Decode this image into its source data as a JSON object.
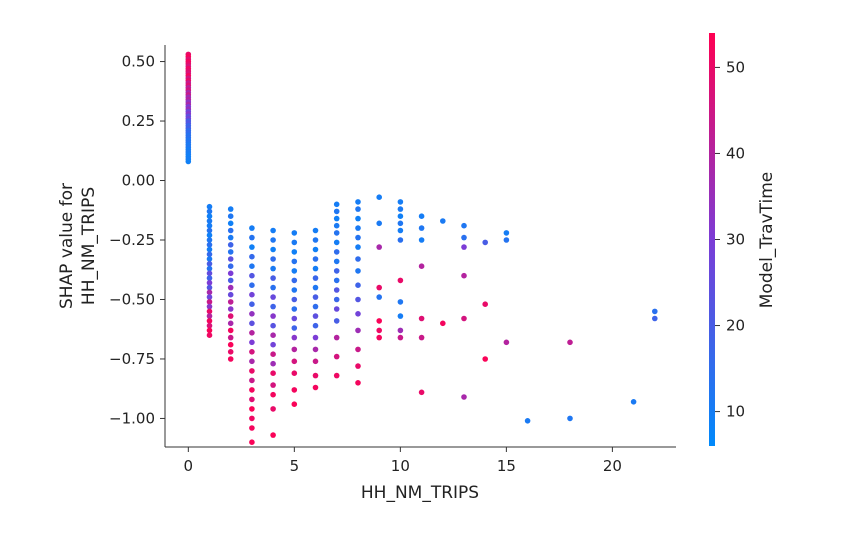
{
  "chart_data": {
    "type": "scatter",
    "xlabel": "HH_NM_TRIPS",
    "ylabel_lines": [
      "SHAP value for",
      "HH_NM_TRIPS"
    ],
    "xlim": [
      -1.1,
      23.0
    ],
    "ylim": [
      -1.12,
      0.62
    ],
    "xticks": [
      0,
      5,
      10,
      15,
      20
    ],
    "xtick_labels": [
      "0",
      "5",
      "10",
      "15",
      "20"
    ],
    "yticks": [
      0.5,
      0.25,
      0.0,
      -0.25,
      -0.5,
      -0.75,
      -1.0
    ],
    "ytick_labels": [
      "0.50",
      "0.25",
      "0.00",
      "−0.25",
      "−0.50",
      "−0.75",
      "−1.00"
    ],
    "grid": false,
    "colorbar": {
      "label": "Model_TravTime",
      "range": [
        6,
        54
      ],
      "ticks": [
        10,
        20,
        30,
        40,
        50
      ],
      "tick_labels": [
        "10",
        "20",
        "30",
        "40",
        "50"
      ],
      "color_low": "#008afb",
      "color_mid": "#7c3cd6",
      "color_high": "#ff0052"
    },
    "points": [
      [
        0,
        0.53,
        50
      ],
      [
        0,
        0.52,
        53
      ],
      [
        0,
        0.51,
        48
      ],
      [
        0,
        0.5,
        52
      ],
      [
        0,
        0.49,
        50
      ],
      [
        0,
        0.48,
        46
      ],
      [
        0,
        0.47,
        51
      ],
      [
        0,
        0.46,
        49
      ],
      [
        0,
        0.45,
        47
      ],
      [
        0,
        0.44,
        52
      ],
      [
        0,
        0.43,
        45
      ],
      [
        0,
        0.42,
        50
      ],
      [
        0,
        0.41,
        43
      ],
      [
        0,
        0.4,
        48
      ],
      [
        0,
        0.39,
        41
      ],
      [
        0,
        0.38,
        46
      ],
      [
        0,
        0.37,
        38
      ],
      [
        0,
        0.36,
        44
      ],
      [
        0,
        0.35,
        36
      ],
      [
        0,
        0.34,
        40
      ],
      [
        0,
        0.33,
        33
      ],
      [
        0,
        0.32,
        38
      ],
      [
        0,
        0.31,
        30
      ],
      [
        0,
        0.3,
        35
      ],
      [
        0,
        0.29,
        27
      ],
      [
        0,
        0.28,
        32
      ],
      [
        0,
        0.27,
        24
      ],
      [
        0,
        0.26,
        28
      ],
      [
        0,
        0.25,
        20
      ],
      [
        0,
        0.24,
        22
      ],
      [
        0,
        0.23,
        17
      ],
      [
        0,
        0.22,
        19
      ],
      [
        0,
        0.21,
        15
      ],
      [
        0,
        0.2,
        16
      ],
      [
        0,
        0.19,
        13
      ],
      [
        0,
        0.18,
        14
      ],
      [
        0,
        0.17,
        12
      ],
      [
        0,
        0.16,
        13
      ],
      [
        0,
        0.15,
        11
      ],
      [
        0,
        0.14,
        12
      ],
      [
        0,
        0.13,
        10
      ],
      [
        0,
        0.12,
        11
      ],
      [
        0,
        0.11,
        10
      ],
      [
        0,
        0.1,
        9
      ],
      [
        0,
        0.09,
        10
      ],
      [
        0,
        0.08,
        9
      ],
      [
        1,
        -0.11,
        10
      ],
      [
        1,
        -0.13,
        12
      ],
      [
        1,
        -0.15,
        9
      ],
      [
        1,
        -0.17,
        11
      ],
      [
        1,
        -0.19,
        10
      ],
      [
        1,
        -0.21,
        13
      ],
      [
        1,
        -0.23,
        9
      ],
      [
        1,
        -0.25,
        12
      ],
      [
        1,
        -0.27,
        14
      ],
      [
        1,
        -0.29,
        10
      ],
      [
        1,
        -0.31,
        16
      ],
      [
        1,
        -0.33,
        11
      ],
      [
        1,
        -0.35,
        20
      ],
      [
        1,
        -0.37,
        13
      ],
      [
        1,
        -0.39,
        25
      ],
      [
        1,
        -0.41,
        18
      ],
      [
        1,
        -0.43,
        30
      ],
      [
        1,
        -0.45,
        22
      ],
      [
        1,
        -0.47,
        38
      ],
      [
        1,
        -0.49,
        27
      ],
      [
        1,
        -0.51,
        44
      ],
      [
        1,
        -0.53,
        33
      ],
      [
        1,
        -0.55,
        50
      ],
      [
        1,
        -0.57,
        40
      ],
      [
        1,
        -0.59,
        52
      ],
      [
        1,
        -0.61,
        47
      ],
      [
        1,
        -0.63,
        53
      ],
      [
        1,
        -0.65,
        51
      ],
      [
        2,
        -0.12,
        10
      ],
      [
        2,
        -0.15,
        12
      ],
      [
        2,
        -0.18,
        9
      ],
      [
        2,
        -0.21,
        14
      ],
      [
        2,
        -0.24,
        11
      ],
      [
        2,
        -0.27,
        18
      ],
      [
        2,
        -0.3,
        13
      ],
      [
        2,
        -0.33,
        24
      ],
      [
        2,
        -0.36,
        16
      ],
      [
        2,
        -0.39,
        30
      ],
      [
        2,
        -0.42,
        20
      ],
      [
        2,
        -0.45,
        36
      ],
      [
        2,
        -0.48,
        26
      ],
      [
        2,
        -0.51,
        42
      ],
      [
        2,
        -0.54,
        32
      ],
      [
        2,
        -0.57,
        48
      ],
      [
        2,
        -0.6,
        38
      ],
      [
        2,
        -0.63,
        52
      ],
      [
        2,
        -0.66,
        44
      ],
      [
        2,
        -0.69,
        53
      ],
      [
        2,
        -0.72,
        50
      ],
      [
        2,
        -0.75,
        52
      ],
      [
        3,
        -0.2,
        10
      ],
      [
        3,
        -0.24,
        13
      ],
      [
        3,
        -0.28,
        9
      ],
      [
        3,
        -0.32,
        16
      ],
      [
        3,
        -0.36,
        12
      ],
      [
        3,
        -0.4,
        22
      ],
      [
        3,
        -0.44,
        15
      ],
      [
        3,
        -0.48,
        28
      ],
      [
        3,
        -0.52,
        19
      ],
      [
        3,
        -0.56,
        34
      ],
      [
        3,
        -0.6,
        24
      ],
      [
        3,
        -0.64,
        40
      ],
      [
        3,
        -0.68,
        30
      ],
      [
        3,
        -0.72,
        46
      ],
      [
        3,
        -0.76,
        38
      ],
      [
        3,
        -0.8,
        50
      ],
      [
        3,
        -0.84,
        44
      ],
      [
        3,
        -0.88,
        52
      ],
      [
        3,
        -0.92,
        48
      ],
      [
        3,
        -0.96,
        53
      ],
      [
        3,
        -1.0,
        51
      ],
      [
        3,
        -1.04,
        52
      ],
      [
        3,
        -1.1,
        53
      ],
      [
        4,
        -0.21,
        10
      ],
      [
        4,
        -0.25,
        12
      ],
      [
        4,
        -0.29,
        9
      ],
      [
        4,
        -0.33,
        15
      ],
      [
        4,
        -0.37,
        11
      ],
      [
        4,
        -0.41,
        20
      ],
      [
        4,
        -0.45,
        14
      ],
      [
        4,
        -0.49,
        26
      ],
      [
        4,
        -0.53,
        18
      ],
      [
        4,
        -0.57,
        32
      ],
      [
        4,
        -0.61,
        23
      ],
      [
        4,
        -0.65,
        38
      ],
      [
        4,
        -0.69,
        28
      ],
      [
        4,
        -0.73,
        44
      ],
      [
        4,
        -0.77,
        36
      ],
      [
        4,
        -0.81,
        50
      ],
      [
        4,
        -0.86,
        46
      ],
      [
        4,
        -0.9,
        52
      ],
      [
        4,
        -0.96,
        50
      ],
      [
        4,
        -1.07,
        53
      ],
      [
        5,
        -0.22,
        10
      ],
      [
        5,
        -0.26,
        11
      ],
      [
        5,
        -0.3,
        9
      ],
      [
        5,
        -0.34,
        13
      ],
      [
        5,
        -0.38,
        10
      ],
      [
        5,
        -0.42,
        16
      ],
      [
        5,
        -0.46,
        12
      ],
      [
        5,
        -0.5,
        20
      ],
      [
        5,
        -0.54,
        14
      ],
      [
        5,
        -0.58,
        26
      ],
      [
        5,
        -0.62,
        18
      ],
      [
        5,
        -0.66,
        32
      ],
      [
        5,
        -0.71,
        40
      ],
      [
        5,
        -0.76,
        46
      ],
      [
        5,
        -0.81,
        50
      ],
      [
        5,
        -0.88,
        52
      ],
      [
        5,
        -0.94,
        53
      ],
      [
        6,
        -0.21,
        10
      ],
      [
        6,
        -0.25,
        12
      ],
      [
        6,
        -0.29,
        9
      ],
      [
        6,
        -0.33,
        14
      ],
      [
        6,
        -0.37,
        10
      ],
      [
        6,
        -0.41,
        17
      ],
      [
        6,
        -0.45,
        12
      ],
      [
        6,
        -0.49,
        20
      ],
      [
        6,
        -0.53,
        15
      ],
      [
        6,
        -0.57,
        24
      ],
      [
        6,
        -0.61,
        18
      ],
      [
        6,
        -0.66,
        30
      ],
      [
        6,
        -0.71,
        38
      ],
      [
        6,
        -0.76,
        44
      ],
      [
        6,
        -0.82,
        50
      ],
      [
        6,
        -0.87,
        52
      ],
      [
        7,
        -0.1,
        10
      ],
      [
        7,
        -0.13,
        12
      ],
      [
        7,
        -0.16,
        9
      ],
      [
        7,
        -0.19,
        11
      ],
      [
        7,
        -0.22,
        13
      ],
      [
        7,
        -0.26,
        10
      ],
      [
        7,
        -0.3,
        15
      ],
      [
        7,
        -0.34,
        12
      ],
      [
        7,
        -0.38,
        18
      ],
      [
        7,
        -0.42,
        14
      ],
      [
        7,
        -0.46,
        22
      ],
      [
        7,
        -0.5,
        17
      ],
      [
        7,
        -0.54,
        26
      ],
      [
        7,
        -0.59,
        20
      ],
      [
        7,
        -0.66,
        40
      ],
      [
        7,
        -0.74,
        46
      ],
      [
        7,
        -0.82,
        51
      ],
      [
        8,
        -0.09,
        10
      ],
      [
        8,
        -0.12,
        12
      ],
      [
        8,
        -0.16,
        9
      ],
      [
        8,
        -0.2,
        11
      ],
      [
        8,
        -0.24,
        13
      ],
      [
        8,
        -0.28,
        10
      ],
      [
        8,
        -0.33,
        15
      ],
      [
        8,
        -0.38,
        12
      ],
      [
        8,
        -0.44,
        18
      ],
      [
        8,
        -0.5,
        22
      ],
      [
        8,
        -0.56,
        28
      ],
      [
        8,
        -0.63,
        36
      ],
      [
        8,
        -0.71,
        44
      ],
      [
        8,
        -0.78,
        50
      ],
      [
        8,
        -0.85,
        52
      ],
      [
        9,
        -0.07,
        10
      ],
      [
        9,
        -0.18,
        11
      ],
      [
        9,
        -0.28,
        38
      ],
      [
        9,
        -0.45,
        50
      ],
      [
        9,
        -0.49,
        13
      ],
      [
        9,
        -0.59,
        53
      ],
      [
        9,
        -0.63,
        51
      ],
      [
        9,
        -0.66,
        52
      ],
      [
        10,
        -0.09,
        10
      ],
      [
        10,
        -0.12,
        11
      ],
      [
        10,
        -0.15,
        9
      ],
      [
        10,
        -0.18,
        12
      ],
      [
        10,
        -0.21,
        10
      ],
      [
        10,
        -0.25,
        14
      ],
      [
        10,
        -0.42,
        50
      ],
      [
        10,
        -0.51,
        12
      ],
      [
        10,
        -0.57,
        10
      ],
      [
        10,
        -0.63,
        36
      ],
      [
        10,
        -0.66,
        44
      ],
      [
        11,
        -0.15,
        10
      ],
      [
        11,
        -0.2,
        12
      ],
      [
        11,
        -0.25,
        10
      ],
      [
        11,
        -0.36,
        40
      ],
      [
        11,
        -0.58,
        48
      ],
      [
        11,
        -0.66,
        44
      ],
      [
        11,
        -0.89,
        50
      ],
      [
        12,
        -0.17,
        11
      ],
      [
        12,
        -0.6,
        52
      ],
      [
        13,
        -0.19,
        12
      ],
      [
        13,
        -0.24,
        14
      ],
      [
        13,
        -0.28,
        30
      ],
      [
        13,
        -0.4,
        40
      ],
      [
        13,
        -0.58,
        46
      ],
      [
        13,
        -0.91,
        38
      ],
      [
        14,
        -0.26,
        20
      ],
      [
        14,
        -0.52,
        50
      ],
      [
        14,
        -0.75,
        53
      ],
      [
        15,
        -0.22,
        10
      ],
      [
        15,
        -0.25,
        13
      ],
      [
        15,
        -0.68,
        40
      ],
      [
        16,
        -1.01,
        11
      ],
      [
        18,
        -0.68,
        42
      ],
      [
        18,
        -1.0,
        12
      ],
      [
        21,
        -0.93,
        11
      ],
      [
        22,
        -0.55,
        14
      ],
      [
        22,
        -0.58,
        18
      ]
    ]
  }
}
